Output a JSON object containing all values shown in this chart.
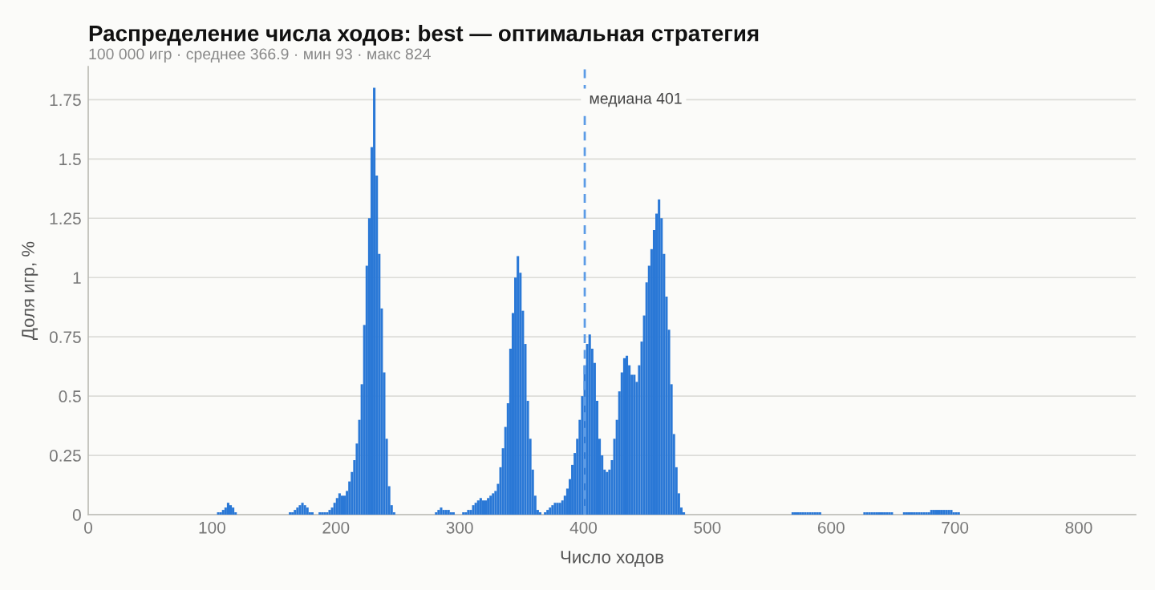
{
  "chart_data": {
    "type": "histogram",
    "title": "Распределение числа ходов: best — оптимальная стратегия",
    "subtitle": "100 000 игр · среднее 366.9 · мин 93 · макс 824",
    "xlabel": "Число ходов",
    "ylabel": "Доля игр, %",
    "bins": [
      104,
      106,
      108,
      110,
      112,
      114,
      116,
      118,
      120,
      162,
      164,
      166,
      168,
      170,
      172,
      174,
      176,
      178,
      180,
      182,
      186,
      188,
      190,
      192,
      194,
      196,
      198,
      200,
      202,
      204,
      206,
      208,
      210,
      212,
      214,
      216,
      218,
      220,
      222,
      224,
      226,
      228,
      230,
      232,
      234,
      236,
      238,
      240,
      242,
      244,
      246,
      248,
      280,
      282,
      284,
      286,
      288,
      290,
      292,
      294,
      296,
      302,
      304,
      306,
      308,
      310,
      312,
      314,
      316,
      318,
      320,
      322,
      324,
      326,
      328,
      330,
      332,
      334,
      336,
      338,
      340,
      342,
      344,
      346,
      348,
      350,
      352,
      354,
      356,
      358,
      360,
      362,
      364,
      366,
      368,
      370,
      372,
      374,
      376,
      378,
      380,
      382,
      384,
      386,
      388,
      390,
      392,
      394,
      396,
      398,
      400,
      402,
      404,
      406,
      408,
      410,
      412,
      414,
      416,
      418,
      420,
      422,
      424,
      426,
      428,
      430,
      432,
      434,
      436,
      438,
      440,
      442,
      444,
      446,
      448,
      450,
      452,
      454,
      456,
      458,
      460,
      462,
      464,
      466,
      468,
      470,
      472,
      474,
      476,
      478,
      480,
      482,
      568,
      570,
      572,
      574,
      576,
      578,
      580,
      582,
      584,
      586,
      588,
      590,
      592,
      626,
      628,
      630,
      632,
      634,
      636,
      638,
      640,
      642,
      644,
      646,
      648,
      650,
      658,
      660,
      662,
      664,
      666,
      668,
      670,
      672,
      674,
      676,
      678,
      680,
      682,
      684,
      686,
      688,
      690,
      692,
      694,
      696,
      698,
      700,
      702,
      704
    ],
    "values": [
      0.01,
      0.01,
      0.02,
      0.03,
      0.05,
      0.04,
      0.03,
      0.01,
      null,
      0.01,
      0.01,
      0.02,
      0.03,
      0.04,
      0.05,
      0.04,
      0.03,
      0.01,
      0.01,
      null,
      0.01,
      0.01,
      0.01,
      0.01,
      0.02,
      0.03,
      0.05,
      0.07,
      0.09,
      0.08,
      0.08,
      0.1,
      0.14,
      0.18,
      0.23,
      0.3,
      0.4,
      0.55,
      0.8,
      1.05,
      1.25,
      1.55,
      1.8,
      1.43,
      1.1,
      0.87,
      0.6,
      0.32,
      0.12,
      0.04,
      0.01,
      null,
      0.01,
      0.02,
      0.03,
      0.02,
      0.02,
      0.02,
      0.01,
      0.01,
      null,
      0.01,
      0.01,
      0.02,
      0.02,
      0.04,
      0.05,
      0.06,
      0.07,
      0.06,
      0.06,
      0.07,
      0.08,
      0.09,
      0.1,
      0.13,
      0.2,
      0.28,
      0.37,
      0.47,
      0.7,
      0.85,
      1.0,
      1.09,
      1.02,
      0.86,
      0.72,
      0.48,
      0.32,
      0.19,
      0.08,
      0.02,
      0.01,
      null,
      0.01,
      0.02,
      0.03,
      0.04,
      0.05,
      0.05,
      0.05,
      0.06,
      0.08,
      0.11,
      0.15,
      0.21,
      0.26,
      0.32,
      0.4,
      0.5,
      0.63,
      0.72,
      0.76,
      0.7,
      0.64,
      0.48,
      0.32,
      0.25,
      0.19,
      0.18,
      0.19,
      0.23,
      0.32,
      0.4,
      0.52,
      0.6,
      0.66,
      0.67,
      0.63,
      0.59,
      0.59,
      0.56,
      0.63,
      0.73,
      0.84,
      0.98,
      1.05,
      1.12,
      1.2,
      1.27,
      1.33,
      1.25,
      1.1,
      0.92,
      0.78,
      0.55,
      0.34,
      0.2,
      0.09,
      0.03,
      0.01,
      null,
      0.01,
      0.01,
      0.01,
      0.01,
      0.01,
      0.01,
      0.01,
      0.01,
      0.01,
      0.01,
      0.01,
      0.01,
      null,
      0.01,
      0.01,
      0.01,
      0.01,
      0.01,
      0.01,
      0.01,
      0.01,
      0.01,
      0.01,
      0.01,
      0.01,
      null,
      0.01,
      0.01,
      0.01,
      0.01,
      0.01,
      0.01,
      0.01,
      0.01,
      0.01,
      0.01,
      0.01,
      0.02,
      0.02,
      0.02,
      0.02,
      0.02,
      0.02,
      0.02,
      0.02,
      0.02,
      0.01,
      0.01,
      0.01
    ],
    "color": "#2a78d6",
    "xlim": [
      0,
      846
    ],
    "ylim": [
      0,
      1.89
    ],
    "xticks": [
      0,
      100,
      200,
      300,
      400,
      500,
      600,
      700,
      800
    ],
    "yticks": [
      0,
      0.25,
      0.5,
      0.75,
      1,
      1.25,
      1.5,
      1.75
    ],
    "grid": "y",
    "ref_lines": [
      {
        "axis": "x",
        "value": 401,
        "label": "медиана 401",
        "color": "#5b9be6",
        "line_style": "dashed"
      }
    ]
  }
}
